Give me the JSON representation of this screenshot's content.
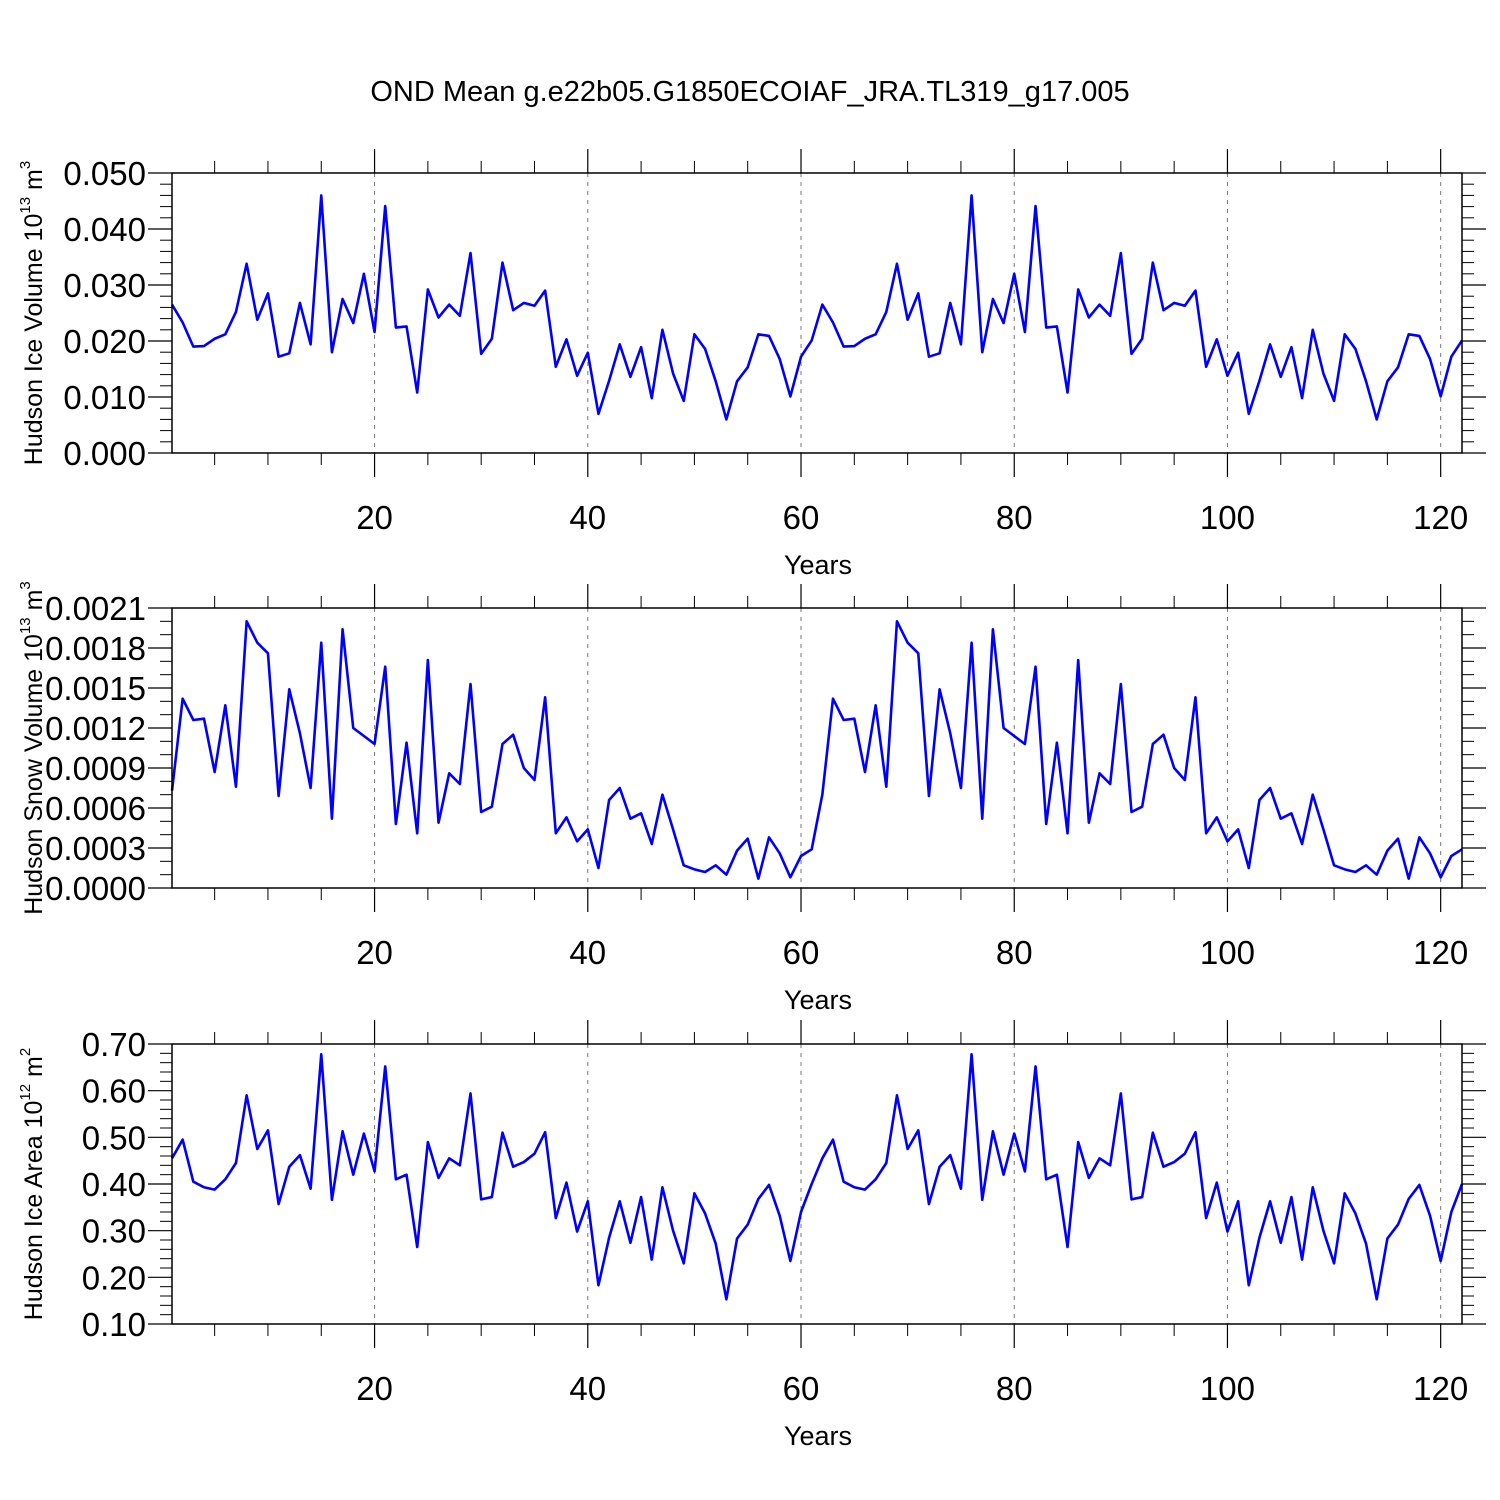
{
  "title": "OND Mean g.e22b05.G1850ECOIAF_JRA.TL319_g17.005",
  "line_color": "#0000ff",
  "chart_data": [
    {
      "type": "line",
      "xlabel": "Years",
      "ylabel": {
        "main": "Hudson Ice Volume 10",
        "exp": "13",
        "unit": " m",
        "unit_exp": "3"
      },
      "xlim": [
        1,
        122
      ],
      "ylim": [
        0.0,
        0.05
      ],
      "grid": "vertical dashed at major x ticks",
      "x_ticks": [
        20,
        40,
        60,
        80,
        100,
        120
      ],
      "x_tick_labels": [
        "20",
        "40",
        "60",
        "80",
        "100",
        "120"
      ],
      "y_ticks": [
        0.0,
        0.01,
        0.02,
        0.03,
        0.04,
        0.05
      ],
      "y_tick_labels": [
        "0.000",
        "0.010",
        "0.020",
        "0.030",
        "0.040",
        "0.050"
      ],
      "series": [
        {
          "values": [
            0.0265,
            0.0233,
            0.019,
            0.0191,
            0.0204,
            0.0212,
            0.0252,
            0.0338,
            0.0238,
            0.0285,
            0.0172,
            0.0178,
            0.0268,
            0.0194,
            0.046,
            0.018,
            0.0275,
            0.0232,
            0.032,
            0.0216,
            0.0441,
            0.0224,
            0.0226,
            0.0108,
            0.0292,
            0.0242,
            0.0265,
            0.0245,
            0.0357,
            0.0177,
            0.0204,
            0.034,
            0.0255,
            0.0268,
            0.0263,
            0.029,
            0.0154,
            0.0203,
            0.0138,
            0.0179,
            0.007,
            0.0129,
            0.0194,
            0.0136,
            0.0189,
            0.0098,
            0.022,
            0.0142,
            0.0093,
            0.0212,
            0.0186,
            0.0128,
            0.006,
            0.0128,
            0.0153,
            0.0212,
            0.0209,
            0.0168,
            0.0101,
            0.0172,
            0.0201,
            0.0265,
            0.0233,
            0.019,
            0.0191,
            0.0204,
            0.0212,
            0.0252,
            0.0338,
            0.0238,
            0.0285,
            0.0172,
            0.0178,
            0.0268,
            0.0194,
            0.046,
            0.018,
            0.0275,
            0.0232,
            0.032,
            0.0216,
            0.0441,
            0.0224,
            0.0226,
            0.0108,
            0.0292,
            0.0242,
            0.0265,
            0.0245,
            0.0357,
            0.0177,
            0.0204,
            0.034,
            0.0255,
            0.0268,
            0.0263,
            0.029,
            0.0154,
            0.0203,
            0.0138,
            0.0179,
            0.007,
            0.0129,
            0.0194,
            0.0136,
            0.0189,
            0.0098,
            0.022,
            0.0142,
            0.0093,
            0.0212,
            0.0186,
            0.0128,
            0.006,
            0.0128,
            0.0153,
            0.0212,
            0.0209,
            0.0168,
            0.0101,
            0.0172,
            0.0201
          ]
        }
      ]
    },
    {
      "type": "line",
      "xlabel": "Years",
      "ylabel": {
        "main": "Hudson Snow Volume 10",
        "exp": "13",
        "unit": " m",
        "unit_exp": "3"
      },
      "xlim": [
        1,
        122
      ],
      "ylim": [
        0.0,
        0.0021
      ],
      "grid": "vertical dashed at major x ticks",
      "x_ticks": [
        20,
        40,
        60,
        80,
        100,
        120
      ],
      "x_tick_labels": [
        "20",
        "40",
        "60",
        "80",
        "100",
        "120"
      ],
      "y_ticks": [
        0.0,
        0.0003,
        0.0006,
        0.0009,
        0.0012,
        0.0015,
        0.0018,
        0.0021
      ],
      "y_tick_labels": [
        "0.0000",
        "0.0003",
        "0.0006",
        "0.0009",
        "0.0012",
        "0.0015",
        "0.0018",
        "0.0021"
      ],
      "series": [
        {
          "values": [
            0.00073,
            0.00142,
            0.00126,
            0.00127,
            0.00087,
            0.00137,
            0.00076,
            0.002,
            0.00184,
            0.00176,
            0.00069,
            0.00149,
            0.00116,
            0.00075,
            0.00184,
            0.00052,
            0.00194,
            0.0012,
            0.00114,
            0.00108,
            0.00166,
            0.00048,
            0.00109,
            0.00041,
            0.00171,
            0.00049,
            0.00086,
            0.00078,
            0.00153,
            0.00057,
            0.00061,
            0.00108,
            0.00115,
            0.0009,
            0.00081,
            0.00143,
            0.00041,
            0.00053,
            0.00035,
            0.00044,
            0.00015,
            0.00066,
            0.00075,
            0.00052,
            0.00056,
            0.00033,
            0.0007,
            0.00044,
            0.00017,
            0.00014,
            0.00012,
            0.00017,
            0.0001,
            0.00028,
            0.00037,
            7e-05,
            0.00038,
            0.00026,
            8e-05,
            0.00024,
            0.00029,
            0.0007,
            0.00142,
            0.00126,
            0.00127,
            0.00087,
            0.00137,
            0.00076,
            0.002,
            0.00184,
            0.00176,
            0.00069,
            0.00149,
            0.00116,
            0.00075,
            0.00184,
            0.00052,
            0.00194,
            0.0012,
            0.00114,
            0.00108,
            0.00166,
            0.00048,
            0.00109,
            0.00041,
            0.00171,
            0.00049,
            0.00086,
            0.00078,
            0.00153,
            0.00057,
            0.00061,
            0.00108,
            0.00115,
            0.0009,
            0.00081,
            0.00143,
            0.00041,
            0.00053,
            0.00035,
            0.00044,
            0.00015,
            0.00066,
            0.00075,
            0.00052,
            0.00056,
            0.00033,
            0.0007,
            0.00044,
            0.00017,
            0.00014,
            0.00012,
            0.00017,
            0.0001,
            0.00028,
            0.00037,
            7e-05,
            0.00038,
            0.00026,
            8e-05,
            0.00024,
            0.00029
          ]
        }
      ]
    },
    {
      "type": "line",
      "xlabel": "Years",
      "ylabel": {
        "main": "Hudson Ice Area 10",
        "exp": "12",
        "unit": " m",
        "unit_exp": "2"
      },
      "xlim": [
        1,
        122
      ],
      "ylim": [
        0.1,
        0.7
      ],
      "grid": "vertical dashed at major x ticks",
      "x_ticks": [
        20,
        40,
        60,
        80,
        100,
        120
      ],
      "x_tick_labels": [
        "20",
        "40",
        "60",
        "80",
        "100",
        "120"
      ],
      "y_ticks": [
        0.1,
        0.2,
        0.3,
        0.4,
        0.5,
        0.6,
        0.7
      ],
      "y_tick_labels": [
        "0.10",
        "0.20",
        "0.30",
        "0.40",
        "0.50",
        "0.60",
        "0.70"
      ],
      "series": [
        {
          "values": [
            0.455,
            0.495,
            0.405,
            0.393,
            0.388,
            0.41,
            0.445,
            0.59,
            0.475,
            0.515,
            0.357,
            0.437,
            0.462,
            0.39,
            0.678,
            0.366,
            0.513,
            0.42,
            0.508,
            0.427,
            0.652,
            0.41,
            0.42,
            0.265,
            0.49,
            0.413,
            0.455,
            0.44,
            0.594,
            0.367,
            0.372,
            0.51,
            0.437,
            0.447,
            0.465,
            0.511,
            0.327,
            0.403,
            0.298,
            0.363,
            0.183,
            0.285,
            0.363,
            0.274,
            0.372,
            0.238,
            0.393,
            0.3,
            0.23,
            0.38,
            0.337,
            0.272,
            0.153,
            0.283,
            0.313,
            0.368,
            0.398,
            0.332,
            0.235,
            0.34,
            0.4,
            0.455,
            0.495,
            0.405,
            0.393,
            0.388,
            0.41,
            0.445,
            0.59,
            0.475,
            0.515,
            0.357,
            0.437,
            0.462,
            0.39,
            0.678,
            0.366,
            0.513,
            0.42,
            0.508,
            0.427,
            0.652,
            0.41,
            0.42,
            0.265,
            0.49,
            0.413,
            0.455,
            0.44,
            0.594,
            0.367,
            0.372,
            0.51,
            0.437,
            0.447,
            0.465,
            0.511,
            0.327,
            0.403,
            0.298,
            0.363,
            0.183,
            0.285,
            0.363,
            0.274,
            0.372,
            0.238,
            0.393,
            0.3,
            0.23,
            0.38,
            0.337,
            0.272,
            0.153,
            0.283,
            0.313,
            0.368,
            0.398,
            0.332,
            0.235,
            0.34,
            0.4
          ]
        }
      ]
    }
  ]
}
